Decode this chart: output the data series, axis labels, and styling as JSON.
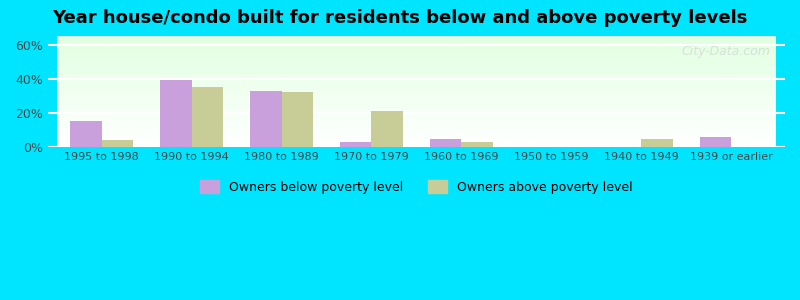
{
  "title": "Year house/condo built for residents below and above poverty levels",
  "categories": [
    "1995 to 1998",
    "1990 to 1994",
    "1980 to 1989",
    "1970 to 1979",
    "1960 to 1969",
    "1950 to 1959",
    "1940 to 1949",
    "1939 or earlier"
  ],
  "below_poverty": [
    15,
    39,
    33,
    3,
    5,
    0,
    0,
    6
  ],
  "above_poverty": [
    4,
    35,
    32,
    21,
    3,
    0,
    5,
    0
  ],
  "below_color": "#c9a0dc",
  "above_color": "#c8cc96",
  "yticks": [
    0,
    20,
    40,
    60
  ],
  "ylim": [
    0,
    65
  ],
  "background_start": "#f0fff0",
  "background_end": "#e8f8e8",
  "outer_bg": "#00e5ff",
  "legend_below": "Owners below poverty level",
  "legend_above": "Owners above poverty level",
  "watermark": "City-Data.com"
}
